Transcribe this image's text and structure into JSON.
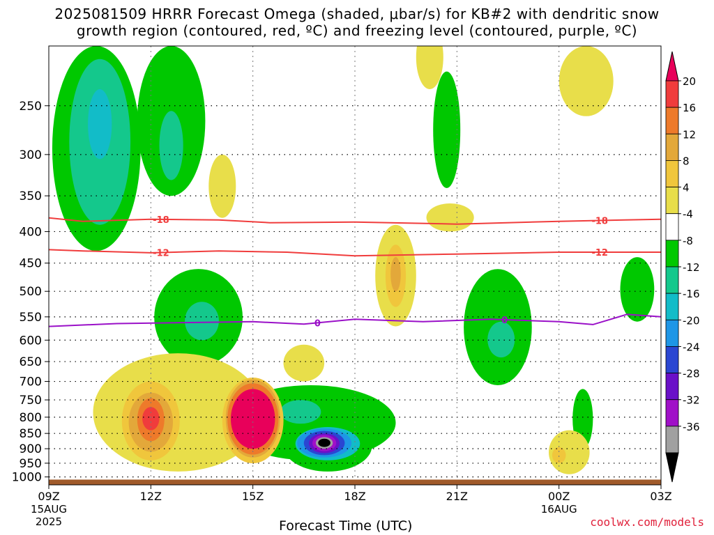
{
  "title_line1": "2025081509 HRRR Forecast Omega (shaded, μbar/s) for KB#2 with dendritic snow",
  "title_line2": "growth region (contoured, red, ºC) and freezing level (contoured, purple, ºC)",
  "credit": "coolwx.com/models",
  "chart_data": {
    "type": "heatmap",
    "title": "2025081509 HRRR Forecast Omega (shaded, μbar/s) for KB#2 with dendritic snow growth region (contoured, red, ºC) and freezing level (contoured, purple, ºC)",
    "xlabel": "Forecast Time (UTC)",
    "ylabel": "",
    "x_ticks": [
      {
        "hour": 0,
        "label": "09Z",
        "sub1": "15AUG",
        "sub2": "2025"
      },
      {
        "hour": 3,
        "label": "12Z",
        "sub1": "",
        "sub2": ""
      },
      {
        "hour": 6,
        "label": "15Z",
        "sub1": "",
        "sub2": ""
      },
      {
        "hour": 9,
        "label": "18Z",
        "sub1": "",
        "sub2": ""
      },
      {
        "hour": 12,
        "label": "21Z",
        "sub1": "",
        "sub2": ""
      },
      {
        "hour": 15,
        "label": "00Z",
        "sub1": "16AUG",
        "sub2": ""
      },
      {
        "hour": 18,
        "label": "03Z",
        "sub1": "",
        "sub2": ""
      }
    ],
    "y_axis": {
      "type": "log-pressure",
      "range_hpa": [
        1030,
        200
      ],
      "reversed": true
    },
    "y_ticks": [
      250,
      300,
      350,
      400,
      450,
      500,
      550,
      600,
      650,
      700,
      750,
      800,
      850,
      900,
      950,
      1000
    ],
    "grid": true,
    "colorbar": {
      "labels": [
        "20",
        "16",
        "12",
        "8",
        "4",
        "-4",
        "-8",
        "-12",
        "-16",
        "-20",
        "-24",
        "-28",
        "-32",
        "-36"
      ],
      "colors": [
        "#e8005a",
        "#f03c3c",
        "#ee7a2a",
        "#e3a83a",
        "#f0c63c",
        "#e8de4a",
        "#ffffff",
        "#00c800",
        "#14c88c",
        "#12bcc8",
        "#1e96e6",
        "#2a46d2",
        "#6a10c8",
        "#a010c8",
        "#a0a0a0",
        "#000000"
      ]
    },
    "omega_features": [
      {
        "kind": "ascent",
        "level": -8,
        "color": "#00c800",
        "t": 1.4,
        "p": 310,
        "dt": 1.3,
        "dp_up": 110,
        "dp_down": 120
      },
      {
        "kind": "ascent",
        "level": -12,
        "color": "#14c88c",
        "t": 1.5,
        "p": 290,
        "dt": 0.9,
        "dp_up": 80,
        "dp_down": 100
      },
      {
        "kind": "ascent",
        "level": -16,
        "color": "#12bcc8",
        "t": 1.5,
        "p": 265,
        "dt": 0.35,
        "dp_up": 30,
        "dp_down": 40
      },
      {
        "kind": "ascent",
        "level": -8,
        "color": "#00c800",
        "t": 3.6,
        "p": 270,
        "dt": 1.0,
        "dp_up": 70,
        "dp_down": 80
      },
      {
        "kind": "ascent",
        "level": -12,
        "color": "#14c88c",
        "t": 3.6,
        "p": 290,
        "dt": 0.35,
        "dp_up": 35,
        "dp_down": 40
      },
      {
        "kind": "ascent",
        "level": -8,
        "color": "#00c800",
        "t": 4.4,
        "p": 530,
        "dt": 1.3,
        "dp_up": 70,
        "dp_down": 130
      },
      {
        "kind": "ascent",
        "level": -12,
        "color": "#14c88c",
        "t": 4.5,
        "p": 560,
        "dt": 0.5,
        "dp_up": 40,
        "dp_down": 40
      },
      {
        "kind": "ascent",
        "level": -8,
        "color": "#00c800",
        "t": 7.7,
        "p": 820,
        "dt": 2.5,
        "dp_up": 110,
        "dp_down": 120
      },
      {
        "kind": "ascent",
        "level": -12,
        "color": "#14c88c",
        "t": 7.4,
        "p": 790,
        "dt": 0.6,
        "dp_up": 40,
        "dp_down": 30
      },
      {
        "kind": "ascent",
        "level": -8,
        "color": "#00c800",
        "t": 13.2,
        "p": 580,
        "dt": 1.0,
        "dp_up": 120,
        "dp_down": 130
      },
      {
        "kind": "ascent",
        "level": -12,
        "color": "#14c88c",
        "t": 13.3,
        "p": 600,
        "dt": 0.4,
        "dp_up": 40,
        "dp_down": 40
      },
      {
        "kind": "ascent",
        "level": -8,
        "color": "#00c800",
        "t": 17.3,
        "p": 500,
        "dt": 0.5,
        "dp_up": 60,
        "dp_down": 60
      },
      {
        "kind": "ascent",
        "level": -8,
        "color": "#00c800",
        "t": 15.7,
        "p": 790,
        "dt": 0.3,
        "dp_up": 70,
        "dp_down": 110
      },
      {
        "kind": "ascent",
        "level": -8,
        "color": "#00c800",
        "t": 11.7,
        "p": 280,
        "dt": 0.4,
        "dp_up": 60,
        "dp_down": 60
      },
      {
        "kind": "ascent",
        "level": -8,
        "color": "#00c800",
        "t": 8.2,
        "p": 900,
        "dt": 1.3,
        "dp_up": 90,
        "dp_down": 80
      },
      {
        "kind": "ascent",
        "level": -12,
        "color": "#12bcc8",
        "t": 8.2,
        "p": 880,
        "dt": 0.95,
        "dp_up": 50,
        "dp_down": 60
      },
      {
        "kind": "ascent",
        "level": -16,
        "color": "#1e96e6",
        "t": 8.1,
        "p": 880,
        "dt": 0.8,
        "dp_up": 45,
        "dp_down": 50
      },
      {
        "kind": "ascent",
        "level": -20,
        "color": "#2a46d2",
        "t": 8.1,
        "p": 880,
        "dt": 0.6,
        "dp_up": 38,
        "dp_down": 42
      },
      {
        "kind": "ascent",
        "level": -24,
        "color": "#6a10c8",
        "t": 8.1,
        "p": 880,
        "dt": 0.45,
        "dp_up": 30,
        "dp_down": 35
      },
      {
        "kind": "ascent",
        "level": -28,
        "color": "#a010c8",
        "t": 8.1,
        "p": 880,
        "dt": 0.35,
        "dp_up": 25,
        "dp_down": 28
      },
      {
        "kind": "ascent",
        "level": -32,
        "color": "#a0a0a0",
        "t": 8.1,
        "p": 880,
        "dt": 0.25,
        "dp_up": 18,
        "dp_down": 20
      },
      {
        "kind": "ascent",
        "level": -36,
        "color": "#000000",
        "t": 8.1,
        "p": 880,
        "dt": 0.18,
        "dp_up": 13,
        "dp_down": 14
      },
      {
        "kind": "descent",
        "level": 4,
        "color": "#e8de4a",
        "t": 3.8,
        "p": 790,
        "dt": 2.5,
        "dp_up": 160,
        "dp_down": 190
      },
      {
        "kind": "descent",
        "level": 8,
        "color": "#f0c63c",
        "t": 3.0,
        "p": 810,
        "dt": 0.85,
        "dp_up": 110,
        "dp_down": 130
      },
      {
        "kind": "descent",
        "level": 12,
        "color": "#e3a83a",
        "t": 3.0,
        "p": 810,
        "dt": 0.65,
        "dp_up": 80,
        "dp_down": 100
      },
      {
        "kind": "descent",
        "level": 16,
        "color": "#ee7a2a",
        "t": 3.0,
        "p": 800,
        "dt": 0.4,
        "dp_up": 55,
        "dp_down": 75
      },
      {
        "kind": "descent",
        "level": 20,
        "color": "#f03c3c",
        "t": 3.0,
        "p": 800,
        "dt": 0.25,
        "dp_up": 30,
        "dp_down": 40
      },
      {
        "kind": "descent",
        "level": 8,
        "color": "#f0c63c",
        "t": 6.0,
        "p": 810,
        "dt": 0.9,
        "dp_up": 120,
        "dp_down": 140
      },
      {
        "kind": "descent",
        "level": 12,
        "color": "#e3a83a",
        "t": 6.0,
        "p": 800,
        "dt": 0.8,
        "dp_up": 105,
        "dp_down": 130
      },
      {
        "kind": "descent",
        "level": 16,
        "color": "#ee7a2a",
        "t": 6.0,
        "p": 800,
        "dt": 0.75,
        "dp_up": 95,
        "dp_down": 120
      },
      {
        "kind": "descent",
        "level": 20,
        "color": "#e8005a",
        "t": 6.0,
        "p": 800,
        "dt": 0.65,
        "dp_up": 80,
        "dp_down": 100
      },
      {
        "kind": "descent",
        "level": 4,
        "color": "#e8de4a",
        "t": 10.2,
        "p": 460,
        "dt": 0.6,
        "dp_up": 70,
        "dp_down": 110
      },
      {
        "kind": "descent",
        "level": 8,
        "color": "#f0c63c",
        "t": 10.2,
        "p": 460,
        "dt": 0.3,
        "dp_up": 40,
        "dp_down": 70
      },
      {
        "kind": "descent",
        "level": 12,
        "color": "#e3a83a",
        "t": 10.2,
        "p": 460,
        "dt": 0.15,
        "dp_up": 20,
        "dp_down": 40
      },
      {
        "kind": "descent",
        "level": 4,
        "color": "#e8de4a",
        "t": 7.5,
        "p": 640,
        "dt": 0.6,
        "dp_up": 30,
        "dp_down": 60
      },
      {
        "kind": "descent",
        "level": 4,
        "color": "#e8de4a",
        "t": 5.1,
        "p": 340,
        "dt": 0.4,
        "dp_up": 40,
        "dp_down": 40
      },
      {
        "kind": "descent",
        "level": 4,
        "color": "#e8de4a",
        "t": 11.8,
        "p": 380,
        "dt": 0.7,
        "dp_up": 20,
        "dp_down": 20
      },
      {
        "kind": "descent",
        "level": 4,
        "color": "#e8de4a",
        "t": 11.2,
        "p": 210,
        "dt": 0.4,
        "dp_up": 25,
        "dp_down": 25
      },
      {
        "kind": "descent",
        "level": 4,
        "color": "#e8de4a",
        "t": 15.8,
        "p": 230,
        "dt": 0.8,
        "dp_up": 30,
        "dp_down": 30
      },
      {
        "kind": "descent",
        "level": 4,
        "color": "#e8de4a",
        "t": 15.3,
        "p": 920,
        "dt": 0.6,
        "dp_up": 80,
        "dp_down": 70
      },
      {
        "kind": "descent",
        "level": 8,
        "color": "#f0c63c",
        "t": 15.0,
        "p": 920,
        "dt": 0.2,
        "dp_up": 25,
        "dp_down": 30
      }
    ],
    "dendritic_contours": [
      {
        "label": "-18",
        "color": "#f03c3c",
        "points": [
          [
            0,
            380
          ],
          [
            1,
            385
          ],
          [
            3,
            382
          ],
          [
            5,
            383
          ],
          [
            6.5,
            387
          ],
          [
            9,
            386
          ],
          [
            12,
            389
          ],
          [
            15,
            385
          ],
          [
            18,
            382
          ]
        ]
      },
      {
        "label": "-12",
        "color": "#f03c3c",
        "points": [
          [
            0,
            428
          ],
          [
            1,
            430
          ],
          [
            3,
            433
          ],
          [
            5,
            430
          ],
          [
            7,
            432
          ],
          [
            9,
            438
          ],
          [
            12,
            435
          ],
          [
            15,
            432
          ],
          [
            18,
            432
          ]
        ]
      }
    ],
    "freezing_level": {
      "label": "0",
      "color": "#9a10c8",
      "points": [
        [
          0,
          570
        ],
        [
          2,
          564
        ],
        [
          4,
          562
        ],
        [
          6,
          560
        ],
        [
          7.5,
          565
        ],
        [
          9,
          555
        ],
        [
          11,
          560
        ],
        [
          13,
          555
        ],
        [
          15,
          560
        ],
        [
          16,
          566
        ],
        [
          17,
          545
        ],
        [
          18,
          550
        ]
      ]
    },
    "terrain": {
      "color": "#a05a2a",
      "pressure_hpa": 1010
    }
  }
}
